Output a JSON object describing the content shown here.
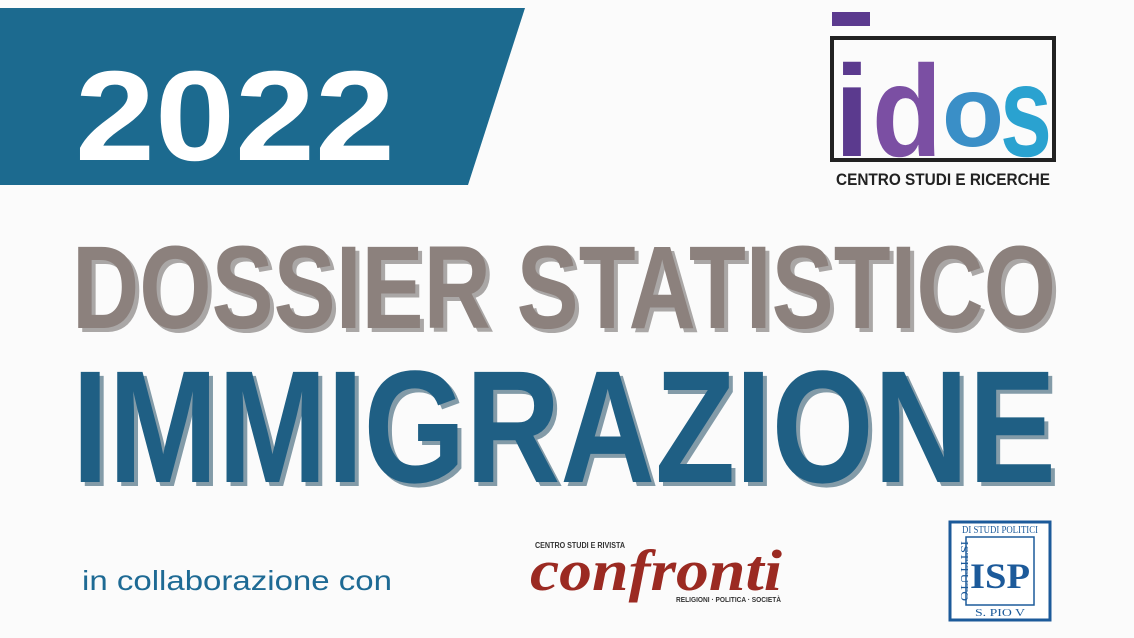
{
  "banner": {
    "year": "2022"
  },
  "logo": {
    "letters": [
      "i",
      "d",
      "o",
      "s"
    ],
    "subtitle": "CENTRO STUDI E RICERCHE"
  },
  "title": {
    "line1": "DOSSIER STATISTICO",
    "line2": "IMMIGRAZIONE"
  },
  "collaboration": {
    "text": "in collaborazione con",
    "confronti": {
      "kicker": "CENTRO STUDI E RIVISTA",
      "name": "confronti",
      "tagline": "RELIGIONI · POLITICA · SOCIETÀ"
    },
    "isp": {
      "top": "DI STUDI POLITICI",
      "left": "ISTITUTO",
      "bottom": "S. PIO V",
      "mark": "ISP"
    }
  }
}
